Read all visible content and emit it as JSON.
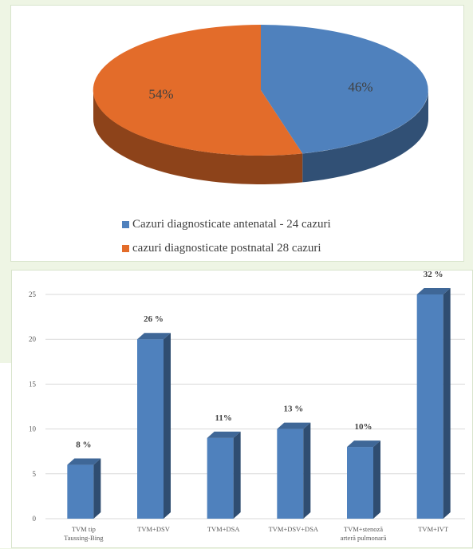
{
  "chart_data": [
    {
      "type": "pie",
      "slices": [
        {
          "name": "Cazuri diagnosticate antenatal - 24 cazuri",
          "value": 46,
          "label": "46%",
          "color": "#4f81bd"
        },
        {
          "name": "cazuri diagnosticate postnatal 28 cazuri",
          "value": 54,
          "label": "54%",
          "color": "#e36c2a"
        }
      ],
      "legend_position": "bottom"
    },
    {
      "type": "bar",
      "categories": [
        [
          "TVM tip",
          "Taussing-Bing"
        ],
        [
          "TVM+DSV"
        ],
        [
          "TVM+DSA"
        ],
        [
          "TVM+DSV+DSA"
        ],
        [
          "TVM+stenoză",
          "arteră pulmonară"
        ],
        [
          "TVM+IVT"
        ]
      ],
      "values": [
        6,
        20,
        9,
        10,
        8,
        25
      ],
      "data_labels": [
        "8 %",
        "26 %",
        "11%",
        "13 %",
        "10%",
        "32 %"
      ],
      "ylim": [
        0,
        25
      ],
      "yticks": [
        "0",
        "5",
        "10",
        "15",
        "20",
        "25"
      ],
      "grid": true,
      "bar_color": "#4f81bd"
    }
  ]
}
